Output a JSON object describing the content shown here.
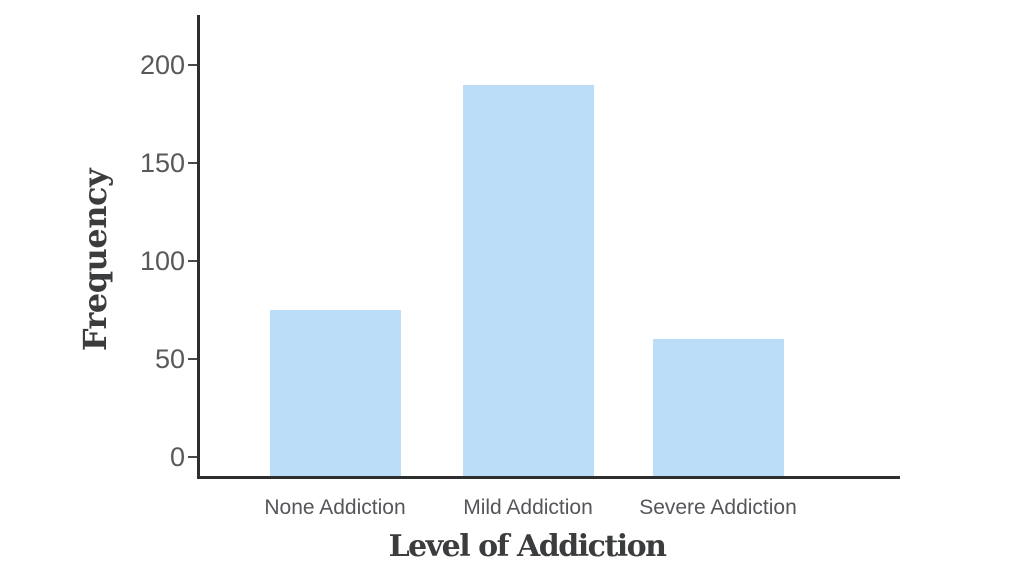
{
  "chart_data": {
    "type": "bar",
    "title": "",
    "xlabel": "Level of Addiction",
    "ylabel": "Frequency",
    "categories": [
      "None Addiction",
      "Mild Addiction",
      "Severe Addiction"
    ],
    "values": [
      75,
      190,
      60
    ],
    "yticks": [
      0,
      50,
      100,
      150,
      200
    ],
    "ylim": [
      0,
      230
    ],
    "grid": false,
    "legend": false,
    "colors": {
      "bar_fill": "#BBDDF7",
      "axis": "#2E2E2E",
      "tick_label": "#58595B",
      "category_label": "#54565A",
      "axis_title": "#3B3C3E",
      "background": "#FFFFFF"
    }
  }
}
